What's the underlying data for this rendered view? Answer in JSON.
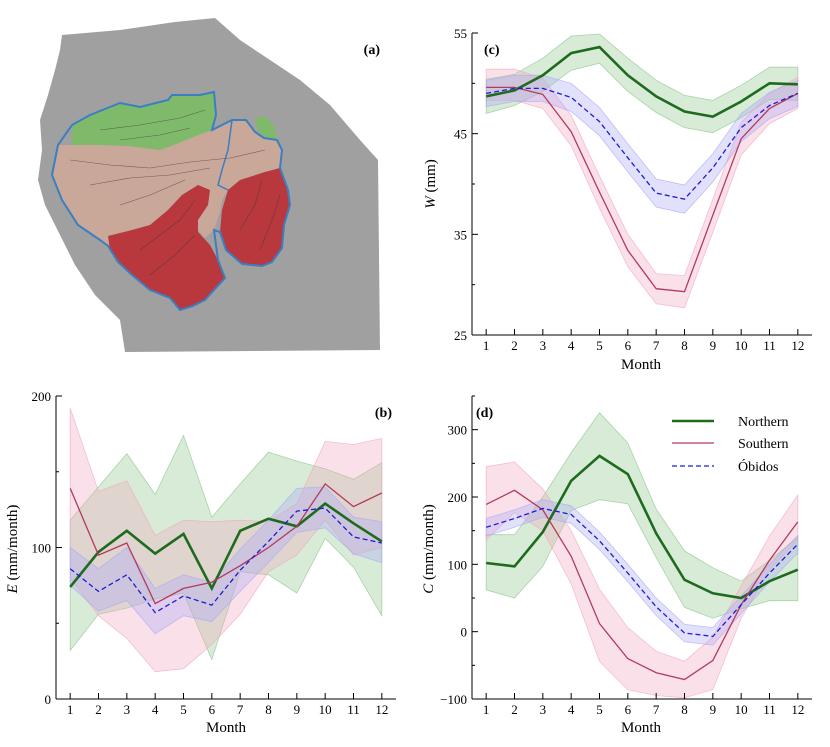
{
  "months": [
    "1",
    "2",
    "3",
    "4",
    "5",
    "6",
    "7",
    "8",
    "9",
    "10",
    "11",
    "12"
  ],
  "colors": {
    "northern": "#1e6b1e",
    "southern": "#b23a5c",
    "obidos": "#1c1cd6",
    "northern_band": "#8cc68c",
    "southern_band": "#f2a8bf",
    "obidos_band": "#a9a9f5",
    "map_land": "#a0a0a0",
    "map_north": "#7fba6b",
    "map_mid": "#c9a89a",
    "map_south": "#b8383e",
    "map_outline": "#3a7fc2"
  },
  "legend": {
    "northern": "Northern",
    "southern": "Southern",
    "obidos": "Óbidos"
  },
  "panel_a": {
    "label": "(a)",
    "icon": "amazon-basin-map"
  },
  "chart_data": [
    {
      "panel": "(b)",
      "type": "line",
      "xlabel": "Month",
      "ylabel": "E (mm/month)",
      "ylabel_italic": "E",
      "ylabel_rest": " (mm/month)",
      "xlim": [
        0.5,
        12.5
      ],
      "ylim": [
        0,
        200
      ],
      "yticks": [
        0,
        100,
        200
      ],
      "x": [
        1,
        2,
        3,
        4,
        5,
        6,
        7,
        8,
        9,
        10,
        11,
        12
      ],
      "series": [
        {
          "name": "Northern",
          "values": [
            74,
            97,
            111,
            96,
            109,
            73,
            111,
            119,
            114,
            129,
            116,
            104
          ],
          "lower": [
            32,
            56,
            60,
            66,
            70,
            26,
            84,
            82,
            70,
            106,
            87,
            55
          ],
          "upper": [
            118,
            140,
            162,
            135,
            174,
            120,
            142,
            163,
            157,
            152,
            145,
            156
          ]
        },
        {
          "name": "Southern",
          "values": [
            139,
            95,
            103,
            63,
            73,
            77,
            88,
            100,
            114,
            142,
            127,
            136
          ],
          "lower": [
            80,
            55,
            40,
            18,
            20,
            36,
            56,
            84,
            95,
            118,
            95,
            100
          ],
          "upper": [
            192,
            137,
            144,
            108,
            118,
            117,
            118,
            117,
            129,
            170,
            168,
            172
          ]
        },
        {
          "name": "Óbidos",
          "values": [
            86,
            71,
            82,
            57,
            68,
            62,
            85,
            104,
            124,
            126,
            107,
            103
          ],
          "lower": [
            75,
            58,
            65,
            43,
            55,
            51,
            71,
            90,
            110,
            113,
            96,
            90
          ],
          "upper": [
            100,
            86,
            100,
            73,
            82,
            77,
            99,
            118,
            139,
            140,
            120,
            117
          ]
        }
      ]
    },
    {
      "panel": "(c)",
      "type": "line",
      "xlabel": "Month",
      "ylabel": "W (mm)",
      "ylabel_italic": "W",
      "ylabel_rest": " (mm)",
      "xlim": [
        0.5,
        12.5
      ],
      "ylim": [
        25,
        55
      ],
      "yticks": [
        25,
        35,
        45,
        55
      ],
      "x": [
        1,
        2,
        3,
        4,
        5,
        6,
        7,
        8,
        9,
        10,
        11,
        12
      ],
      "series": [
        {
          "name": "Northern",
          "values": [
            48.7,
            49.3,
            50.8,
            53.0,
            53.6,
            50.8,
            48.7,
            47.2,
            46.7,
            48.2,
            50.0,
            49.9
          ],
          "lower": [
            47.0,
            47.8,
            49.2,
            51.3,
            52.0,
            49.2,
            47.1,
            45.6,
            45.1,
            46.6,
            48.4,
            48.3
          ],
          "upper": [
            50.4,
            50.9,
            52.5,
            54.7,
            54.9,
            52.5,
            50.3,
            48.8,
            48.3,
            49.8,
            51.6,
            51.6
          ]
        },
        {
          "name": "Southern",
          "values": [
            49.6,
            49.6,
            48.9,
            45.2,
            39.2,
            33.4,
            29.6,
            29.3,
            36.9,
            44.5,
            47.5,
            49.0
          ],
          "lower": [
            48.3,
            48.3,
            47.5,
            43.8,
            37.6,
            31.8,
            28.1,
            27.7,
            35.2,
            42.9,
            46.0,
            47.5
          ],
          "upper": [
            51.4,
            51.4,
            50.5,
            46.8,
            40.8,
            35.0,
            31.1,
            30.9,
            38.5,
            46.1,
            49.0,
            50.6
          ]
        },
        {
          "name": "Óbidos",
          "values": [
            49.0,
            49.5,
            49.5,
            48.6,
            46.2,
            42.6,
            39.1,
            38.5,
            41.6,
            45.6,
            47.8,
            49.0
          ],
          "lower": [
            47.7,
            48.2,
            48.2,
            47.2,
            44.8,
            41.2,
            37.7,
            37.1,
            40.2,
            44.2,
            46.5,
            47.7
          ],
          "upper": [
            50.3,
            50.8,
            50.8,
            50.0,
            47.6,
            44.0,
            40.5,
            39.9,
            43.0,
            47.0,
            49.1,
            50.3
          ]
        }
      ]
    },
    {
      "panel": "(d)",
      "type": "line",
      "xlabel": "Month",
      "ylabel": "C (mm/month)",
      "ylabel_italic": "C",
      "ylabel_rest": " (mm/month)",
      "xlim": [
        0.5,
        12.5
      ],
      "ylim": [
        -100,
        350
      ],
      "yticks": [
        -100,
        0,
        100,
        200,
        300
      ],
      "x": [
        1,
        2,
        3,
        4,
        5,
        6,
        7,
        8,
        9,
        10,
        11,
        12
      ],
      "series": [
        {
          "name": "Northern",
          "values": [
            102,
            97,
            148,
            224,
            261,
            234,
            146,
            77,
            57,
            50,
            75,
            92
          ],
          "lower": [
            62,
            50,
            97,
            180,
            196,
            190,
            110,
            36,
            20,
            34,
            46,
            46
          ],
          "upper": [
            144,
            144,
            200,
            266,
            325,
            280,
            182,
            120,
            95,
            75,
            106,
            140
          ]
        },
        {
          "name": "Southern",
          "values": [
            189,
            210,
            181,
            112,
            12,
            -40,
            -61,
            -71,
            -43,
            40,
            106,
            163
          ],
          "lower": [
            136,
            177,
            150,
            71,
            -44,
            -86,
            -95,
            -98,
            -86,
            20,
            92,
            136
          ],
          "upper": [
            245,
            252,
            212,
            150,
            63,
            6,
            -29,
            -44,
            -8,
            68,
            142,
            203
          ]
        },
        {
          "name": "Óbidos",
          "values": [
            155,
            168,
            183,
            174,
            135,
            87,
            37,
            -2,
            -7,
            40,
            87,
            130
          ],
          "lower": [
            142,
            155,
            170,
            161,
            122,
            74,
            24,
            -15,
            -20,
            27,
            74,
            117
          ],
          "upper": [
            168,
            181,
            196,
            187,
            148,
            100,
            50,
            11,
            6,
            53,
            100,
            143
          ]
        }
      ]
    }
  ]
}
